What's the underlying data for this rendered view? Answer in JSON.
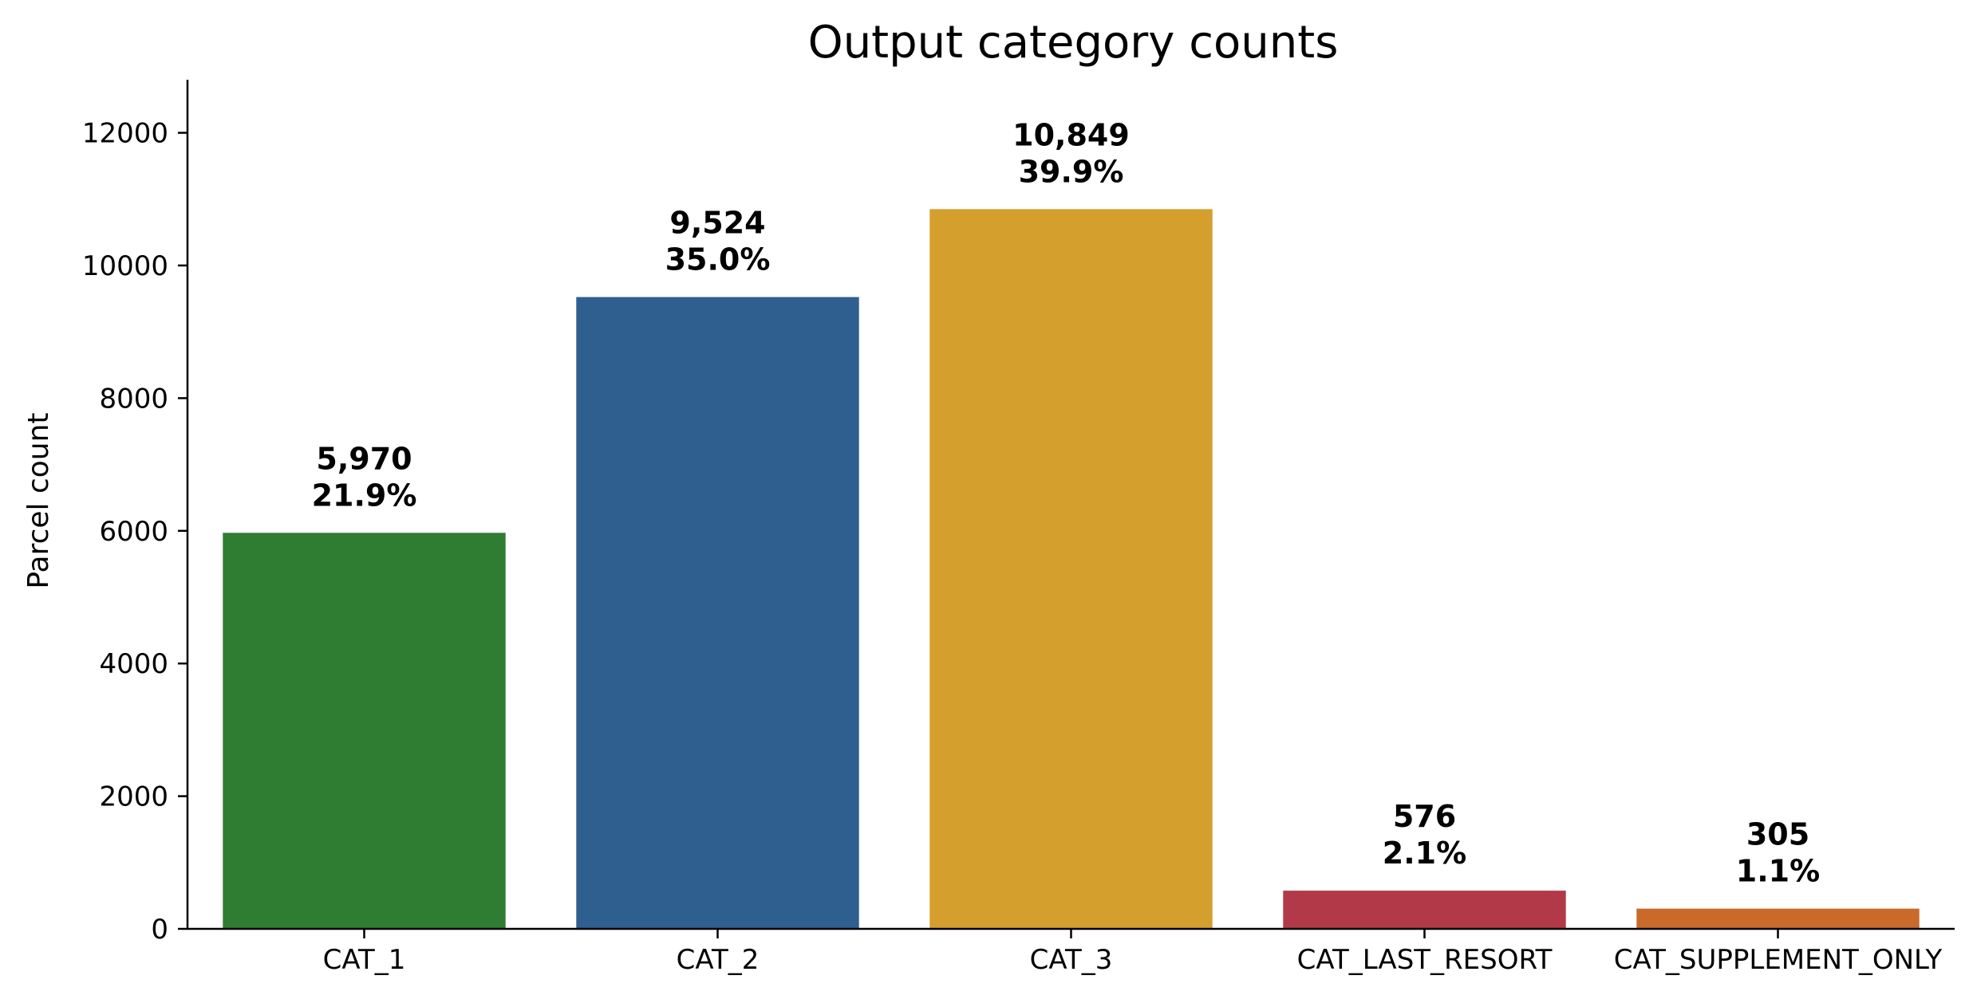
{
  "chart_data": {
    "type": "bar",
    "title": "Output category counts",
    "xlabel": "",
    "ylabel": "Parcel count",
    "ylim": [
      0,
      12800
    ],
    "yticks": [
      0,
      2000,
      4000,
      6000,
      8000,
      10000,
      12000
    ],
    "grid": false,
    "categories": [
      "CAT_1",
      "CAT_2",
      "CAT_3",
      "CAT_LAST_RESORT",
      "CAT_SUPPLEMENT_ONLY"
    ],
    "values": [
      5970,
      9524,
      10849,
      576,
      305
    ],
    "count_labels": [
      "5,970",
      "9,524",
      "10,849",
      "576",
      "305"
    ],
    "percent_labels": [
      "21.9%",
      "35.0%",
      "39.9%",
      "2.1%",
      "1.1%"
    ],
    "colors": [
      "#2f7d32",
      "#2f5f8f",
      "#d59f2e",
      "#b23a48",
      "#c96a2b"
    ]
  }
}
